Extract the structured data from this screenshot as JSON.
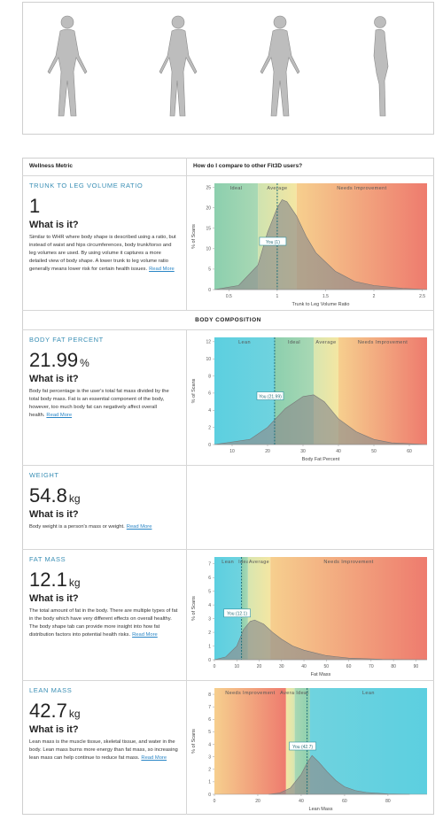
{
  "header": {
    "col1": "Wellness Metric",
    "col2": "How do I compare to other Fit3D users?"
  },
  "section": "BODY COMPOSITION",
  "metrics": [
    {
      "title": "TRUNK TO LEG VOLUME RATIO",
      "value": 1,
      "question": "What is it?",
      "description": "Similar to WHR where body shape is described using a ratio, but instead of waist and hips circumferences, body trunk/torso and leg volumes are used. By using volume it captures a more detailed view of body shape. A lower trunk to leg volume ratio generally means lower risk for certain health issues.",
      "link": "Read More",
      "chart": {
        "type": "area",
        "x_label": "Trunk to Leg Volume Ratio",
        "y_label": "% of Scans",
        "xlim": [
          0.35,
          2.55
        ],
        "xticks": [
          0.5,
          1,
          1.5,
          2,
          2.5
        ],
        "ylim": [
          0,
          26
        ],
        "yticks": [
          0,
          5,
          10,
          15,
          20,
          25
        ],
        "zones": [
          {
            "name": "Ideal",
            "from": 0.35,
            "to": 0.8,
            "colors": [
              "#8ccfae",
              "#a9d8b4"
            ]
          },
          {
            "name": "Average",
            "from": 0.8,
            "to": 1.2,
            "colors": [
              "#cfe3b0",
              "#f4e6a2"
            ]
          },
          {
            "name": "Needs Improvement",
            "from": 1.2,
            "to": 2.55,
            "colors": [
              "#f6cf8e",
              "#ee7b6e"
            ]
          }
        ],
        "marker_label": "You (1)",
        "curve": {
          "x": [
            0.35,
            0.6,
            0.8,
            0.9,
            1.0,
            1.05,
            1.1,
            1.2,
            1.3,
            1.4,
            1.6,
            1.8,
            2.0,
            2.3,
            2.55
          ],
          "y": [
            0,
            1,
            6,
            14,
            20,
            22,
            21.5,
            18,
            13,
            9,
            4.5,
            2,
            1,
            0.3,
            0
          ]
        }
      }
    },
    {
      "title": "BODY FAT PERCENT",
      "value": 21.99,
      "unit": "%",
      "question": "What is it?",
      "description": "Body fat percentage is the user's total fat mass divided by the total body mass. Fat is an essential component of the body, however, too much body fat can negatively affect overall health.",
      "link": "Read More",
      "chart": {
        "type": "area",
        "x_label": "Body Fat Percent",
        "y_label": "% of Scans",
        "xlim": [
          5,
          65
        ],
        "xticks": [
          10,
          20,
          30,
          40,
          50,
          60
        ],
        "ylim": [
          0,
          12.5
        ],
        "yticks": [
          0,
          2,
          4,
          6,
          8,
          10,
          12
        ],
        "zones": [
          {
            "name": "Lean",
            "from": 5,
            "to": 22,
            "colors": [
              "#5ccfe0",
              "#6fd3df"
            ]
          },
          {
            "name": "Ideal",
            "from": 22,
            "to": 33,
            "colors": [
              "#8ccfae",
              "#a9d8b4"
            ]
          },
          {
            "name": "Average",
            "from": 33,
            "to": 40,
            "colors": [
              "#d8e6b0",
              "#f4e6a2"
            ]
          },
          {
            "name": "Needs Improvement",
            "from": 40,
            "to": 65,
            "colors": [
              "#f6cf8e",
              "#ee7b6e"
            ]
          }
        ],
        "marker_label": "You (21.99)",
        "curve": {
          "x": [
            5,
            15,
            20,
            25,
            30,
            33,
            36,
            40,
            45,
            50,
            55,
            65
          ],
          "y": [
            0,
            0.6,
            2,
            4.2,
            5.6,
            5.8,
            5,
            3,
            1.5,
            0.6,
            0.2,
            0
          ]
        }
      }
    },
    {
      "title": "WEIGHT",
      "value": 54.8,
      "unit": "kg",
      "question": "What is it?",
      "description": "Body weight is a person's mass or weight.",
      "link": "Read More"
    },
    {
      "title": "FAT MASS",
      "value": 12.1,
      "unit": "kg",
      "question": "What is it?",
      "description": "The total amount of fat in the body. There are multiple types of fat in the body which have very different effects on overall healthy. The body shape tab can provide more insight into how fat distribution factors into potential health risks.",
      "link": "Read More",
      "chart": {
        "type": "area",
        "x_label": "Fat Mass",
        "y_label": "% of Scans",
        "xlim": [
          0,
          95
        ],
        "xticks": [
          0,
          10,
          20,
          30,
          40,
          50,
          60,
          70,
          80,
          90
        ],
        "ylim": [
          0,
          7.5
        ],
        "yticks": [
          0,
          1,
          2,
          3,
          4,
          5,
          6,
          7
        ],
        "zones": [
          {
            "name": "Lean",
            "from": 0,
            "to": 12,
            "colors": [
              "#5ccfe0",
              "#6fd3df"
            ]
          },
          {
            "name": "Ideal",
            "from": 12,
            "to": 15,
            "colors": [
              "#8ccfae",
              "#a9d8b4"
            ]
          },
          {
            "name": "Average",
            "from": 15,
            "to": 25,
            "colors": [
              "#d8e6b0",
              "#f4e6a2"
            ]
          },
          {
            "name": "Needs Improvement",
            "from": 25,
            "to": 95,
            "colors": [
              "#f6cf8e",
              "#ee7b6e"
            ]
          }
        ],
        "marker_label": "You (12.1)",
        "curve": {
          "x": [
            0,
            5,
            10,
            13,
            16,
            18,
            22,
            26,
            30,
            35,
            40,
            50,
            60,
            75,
            95
          ],
          "y": [
            0,
            0.2,
            1,
            2.2,
            2.8,
            2.9,
            2.6,
            2,
            1.5,
            1,
            0.7,
            0.3,
            0.12,
            0.03,
            0
          ]
        }
      }
    },
    {
      "title": "LEAN MASS",
      "value": 42.7,
      "unit": "kg",
      "question": "What is it?",
      "description": "Lean mass is the muscle tissue, skeletal tissue, and water in the body. Lean mass burns more energy than fat mass, so increasing lean mass can help continue to reduce fat mass.",
      "link": "Read More",
      "chart": {
        "type": "area",
        "x_label": "Lean Mass",
        "y_label": "% of Scans",
        "xlim": [
          0,
          98
        ],
        "xticks": [
          0,
          20,
          40,
          60,
          80
        ],
        "ylim": [
          0,
          8.5
        ],
        "yticks": [
          0,
          1,
          2,
          3,
          4,
          5,
          6,
          7,
          8
        ],
        "zones": [
          {
            "name": "Needs Improvement",
            "from": 0,
            "to": 33,
            "colors": [
              "#f6cf8e",
              "#ee7b6e"
            ]
          },
          {
            "name": "Average",
            "from": 33,
            "to": 37,
            "colors": [
              "#f4e6a2",
              "#d8e6b0"
            ]
          },
          {
            "name": "Ideal",
            "from": 37,
            "to": 44,
            "colors": [
              "#a9d8b4",
              "#8ccfae"
            ]
          },
          {
            "name": "Lean",
            "from": 44,
            "to": 98,
            "colors": [
              "#6fd3df",
              "#5ccfe0"
            ]
          }
        ],
        "marker_label": "You (42.7)",
        "curve": {
          "x": [
            25,
            30,
            35,
            40,
            43,
            45,
            48,
            52,
            56,
            60,
            65,
            70,
            80,
            90
          ],
          "y": [
            0,
            0.1,
            0.5,
            1.6,
            2.6,
            3.1,
            2.6,
            1.8,
            1.1,
            0.6,
            0.3,
            0.15,
            0.03,
            0
          ]
        }
      }
    }
  ]
}
